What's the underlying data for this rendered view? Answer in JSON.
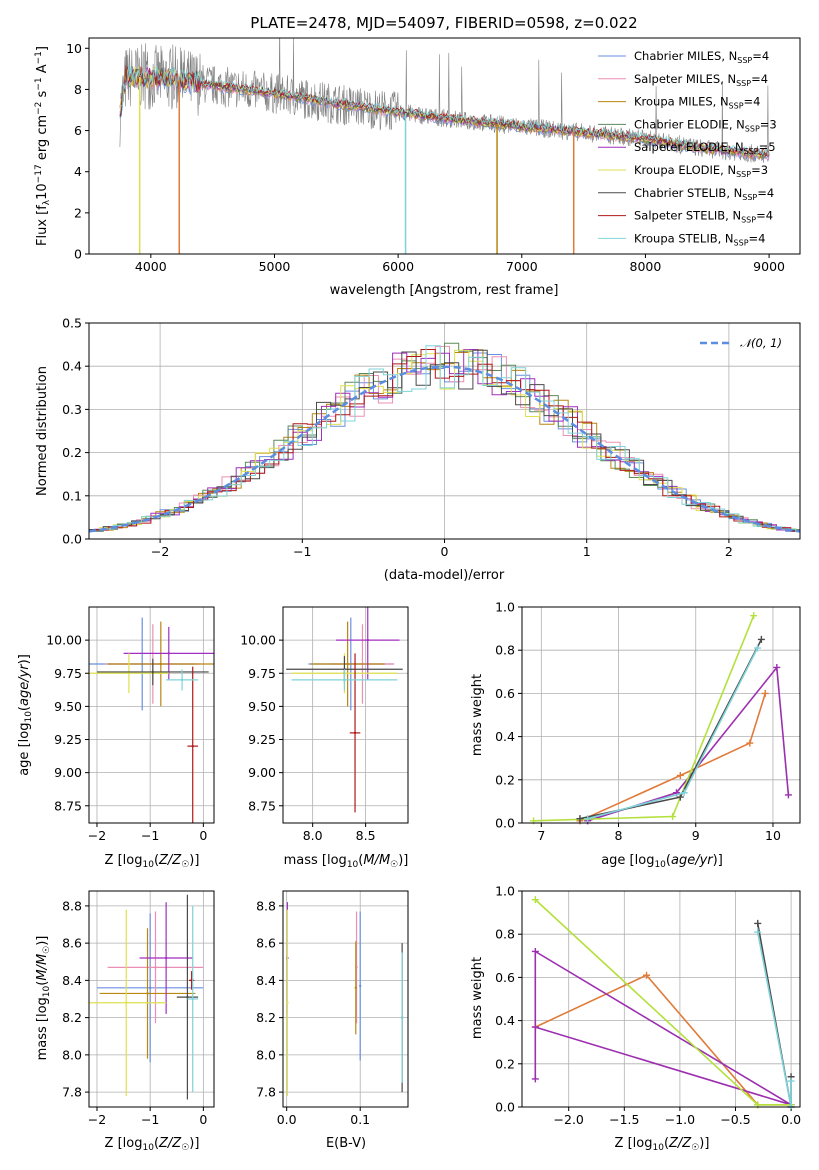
{
  "colors": {
    "Chabrier MILES": "#6a8fe0",
    "Salpeter MILES": "#ec8fb4",
    "Kroupa MILES": "#b9860f",
    "Chabrier ELODIE": "#5c8a5c",
    "Salpeter ELODIE": "#a12fc0",
    "Kroupa ELODIE": "#dfe04f",
    "Chabrier STELIB": "#4a4a4a",
    "Salpeter STELIB": "#b01818",
    "Kroupa STELIB": "#7fd3d8",
    "data": "#808080",
    "gauss": "#5b8ee0",
    "mw_orange": "#e07b39",
    "mw_purple": "#9c2fb0",
    "mw_yellow": "#b4e03c"
  },
  "chart_data": [
    {
      "id": "spectrum",
      "type": "line",
      "title": "PLATE=2478, MJD=54097, FIBERID=0598, z=0.022",
      "xlabel": "wavelength [Angstrom, rest frame]",
      "ylabel": "Flux [f",
      "xlim": [
        3500,
        9250
      ],
      "ylim": [
        0,
        10.5
      ],
      "xticks": [
        "4000",
        "5000",
        "6000",
        "7000",
        "8000",
        "9000"
      ],
      "yticks": [
        "0",
        "2",
        "4",
        "6",
        "8",
        "10"
      ],
      "grid": false,
      "legend_position": "top-right",
      "legend": [
        {
          "name": "Chabrier MILES",
          "nssp": "4"
        },
        {
          "name": "Salpeter MILES",
          "nssp": "4"
        },
        {
          "name": "Kroupa MILES",
          "nssp": "4"
        },
        {
          "name": "Chabrier ELODIE",
          "nssp": "3"
        },
        {
          "name": "Salpeter ELODIE",
          "nssp": "5"
        },
        {
          "name": "Kroupa ELODIE",
          "nssp": "3"
        },
        {
          "name": "Chabrier STELIB",
          "nssp": "4"
        },
        {
          "name": "Salpeter STELIB",
          "nssp": "4"
        },
        {
          "name": "Kroupa STELIB",
          "nssp": "4"
        }
      ],
      "continuum_x": [
        3750,
        3800,
        4000,
        4200,
        4500,
        5000,
        5500,
        6000,
        6500,
        7000,
        7500,
        8000,
        8500,
        9000
      ],
      "continuum_y": [
        6.8,
        8.6,
        8.6,
        8.5,
        8.2,
        7.8,
        7.3,
        6.9,
        6.5,
        6.2,
        5.9,
        5.6,
        5.1,
        4.8
      ],
      "model_dips_x": [
        3910,
        4230,
        6060,
        6800,
        7420
      ]
    },
    {
      "id": "residuals",
      "type": "line",
      "xlabel": "(data-model)/error",
      "ylabel": "Normed distribution",
      "xlim": [
        -2.5,
        2.5
      ],
      "ylim": [
        0,
        0.5
      ],
      "xticks": [
        "−2",
        "−1",
        "0",
        "1",
        "2"
      ],
      "yticks": [
        "0.0",
        "0.1",
        "0.2",
        "0.3",
        "0.4",
        "0.5"
      ],
      "grid": true,
      "legend_position": "top-right",
      "legend": [
        "𝒩(0, 1)"
      ]
    },
    {
      "id": "age_vs_Z",
      "type": "scatter",
      "xlabel": "Z [log",
      "ylabel": "age  [log",
      "xlim": [
        -2.15,
        0.2
      ],
      "ylim": [
        8.62,
        10.25
      ],
      "xticks": [
        "−2",
        "−1",
        "0"
      ],
      "yticks": [
        "8.75",
        "9.00",
        "9.25",
        "9.50",
        "9.75",
        "10.00"
      ],
      "grid": true,
      "points": [
        {
          "model": "Chabrier MILES",
          "x": -1.15,
          "y": 9.82,
          "xerr": 1.0,
          "yerr": 0.35
        },
        {
          "model": "Salpeter MILES",
          "x": -0.95,
          "y": 9.82,
          "xerr": 0.9,
          "yerr": 0.3
        },
        {
          "model": "Kroupa MILES",
          "x": -0.8,
          "y": 9.82,
          "xerr": 1.0,
          "yerr": 0.32
        },
        {
          "model": "Salpeter ELODIE",
          "x": -0.65,
          "y": 9.9,
          "xerr": 0.85,
          "yerr": 0.2
        },
        {
          "model": "Kroupa ELODIE",
          "x": -1.4,
          "y": 9.75,
          "xerr": 0.75,
          "yerr": 0.15
        },
        {
          "model": "Chabrier STELIB",
          "x": -0.95,
          "y": 9.76,
          "xerr": 1.05,
          "yerr": 0.1
        },
        {
          "model": "Salpeter STELIB",
          "x": -0.2,
          "y": 9.2,
          "xerr": 0.1,
          "yerr": 0.6
        },
        {
          "model": "Kroupa STELIB",
          "x": -0.4,
          "y": 9.7,
          "xerr": 0.3,
          "yerr": 0.08
        }
      ]
    },
    {
      "id": "age_vs_mass",
      "type": "scatter",
      "xlabel": "mass [log",
      "ylabel": "",
      "xlim": [
        7.72,
        8.9
      ],
      "ylim": [
        8.62,
        10.25
      ],
      "xticks": [
        "8.0",
        "8.5"
      ],
      "yticks": [
        "8.75",
        "9.00",
        "9.25",
        "9.50",
        "9.75",
        "10.00"
      ],
      "grid": true,
      "points": [
        {
          "model": "Chabrier MILES",
          "x": 8.36,
          "y": 9.82,
          "xerr": 0.4,
          "yerr": 0.35
        },
        {
          "model": "Salpeter MILES",
          "x": 8.47,
          "y": 9.82,
          "xerr": 0.3,
          "yerr": 0.3
        },
        {
          "model": "Kroupa MILES",
          "x": 8.33,
          "y": 9.82,
          "xerr": 0.35,
          "yerr": 0.32
        },
        {
          "model": "Salpeter ELODIE",
          "x": 8.52,
          "y": 10.0,
          "xerr": 0.3,
          "yerr": 0.3
        },
        {
          "model": "Kroupa ELODIE",
          "x": 8.3,
          "y": 9.75,
          "xerr": 0.5,
          "yerr": 0.15
        },
        {
          "model": "Chabrier STELIB",
          "x": 8.3,
          "y": 9.78,
          "xerr": 0.55,
          "yerr": 0.1
        },
        {
          "model": "Salpeter STELIB",
          "x": 8.4,
          "y": 9.3,
          "xerr": 0.05,
          "yerr": 0.6
        },
        {
          "model": "Kroupa STELIB",
          "x": 8.3,
          "y": 9.7,
          "xerr": 0.5,
          "yerr": 0.08
        }
      ]
    },
    {
      "id": "massweight_vs_age",
      "type": "line",
      "xlabel": "age  [log",
      "ylabel": "mass weight",
      "xlim": [
        6.75,
        10.35
      ],
      "ylim": [
        0,
        1.0
      ],
      "xticks": [
        "7",
        "8",
        "9",
        "10"
      ],
      "yticks": [
        "0.0",
        "0.2",
        "0.4",
        "0.6",
        "0.8",
        "1.0"
      ],
      "grid": true,
      "series": [
        {
          "color_key": "mw_orange",
          "x": [
            7.5,
            8.8,
            9.7,
            9.9
          ],
          "y": [
            0.01,
            0.22,
            0.37,
            0.6
          ]
        },
        {
          "color_key": "mw_purple",
          "x": [
            7.6,
            8.75,
            10.05,
            10.2
          ],
          "y": [
            0.01,
            0.14,
            0.72,
            0.13
          ]
        },
        {
          "color_key": "mw_yellow",
          "x": [
            6.9,
            8.7,
            9.75
          ],
          "y": [
            0.01,
            0.03,
            0.96
          ]
        },
        {
          "color_key": "Chabrier STELIB",
          "x": [
            7.5,
            8.8,
            9.85
          ],
          "y": [
            0.02,
            0.12,
            0.85
          ]
        },
        {
          "color_key": "Kroupa STELIB",
          "x": [
            7.6,
            8.85,
            9.8
          ],
          "y": [
            0.02,
            0.14,
            0.81
          ]
        }
      ]
    },
    {
      "id": "mass_vs_Z",
      "type": "scatter",
      "xlabel": "Z [log",
      "ylabel": "mass [log",
      "xlim": [
        -2.15,
        0.2
      ],
      "ylim": [
        7.72,
        8.88
      ],
      "xticks": [
        "−2",
        "−1",
        "0"
      ],
      "yticks": [
        "7.8",
        "8.0",
        "8.2",
        "8.4",
        "8.6",
        "8.8"
      ],
      "grid": true,
      "points": [
        {
          "model": "Chabrier MILES",
          "x": -1.0,
          "y": 8.36,
          "xerr": 1.0,
          "yerr": 0.4
        },
        {
          "model": "Salpeter MILES",
          "x": -0.9,
          "y": 8.47,
          "xerr": 0.9,
          "yerr": 0.3
        },
        {
          "model": "Kroupa MILES",
          "x": -1.05,
          "y": 8.33,
          "xerr": 0.9,
          "yerr": 0.35
        },
        {
          "model": "Salpeter ELODIE",
          "x": -0.7,
          "y": 8.52,
          "xerr": 0.5,
          "yerr": 0.3
        },
        {
          "model": "Kroupa ELODIE",
          "x": -1.45,
          "y": 8.28,
          "xerr": 0.75,
          "yerr": 0.5
        },
        {
          "model": "Chabrier STELIB",
          "x": -0.3,
          "y": 8.31,
          "xerr": 0.2,
          "yerr": 0.55
        },
        {
          "model": "Salpeter STELIB",
          "x": -0.22,
          "y": 8.4,
          "xerr": 0.05,
          "yerr": 0.05
        },
        {
          "model": "Kroupa STELIB",
          "x": -0.2,
          "y": 8.3,
          "xerr": 0.1,
          "yerr": 0.5
        }
      ]
    },
    {
      "id": "mass_vs_EBV",
      "type": "scatter",
      "xlabel": "E(B-V)",
      "ylabel": "",
      "xlim": [
        -0.005,
        0.165
      ],
      "ylim": [
        7.72,
        8.88
      ],
      "xticks": [
        "0.0",
        "0.1"
      ],
      "yticks": [
        "7.8",
        "8.0",
        "8.2",
        "8.4",
        "8.6",
        "8.8"
      ],
      "grid": true,
      "points": [
        {
          "model": "Chabrier MILES",
          "x": 0.1,
          "y": 8.37,
          "xerr": 0,
          "yerr": 0.4
        },
        {
          "model": "Salpeter MILES",
          "x": 0.095,
          "y": 8.47,
          "xerr": 0,
          "yerr": 0.3
        },
        {
          "model": "Kroupa MILES",
          "x": 0.094,
          "y": 8.36,
          "xerr": 0,
          "yerr": 0.25
        },
        {
          "model": "Salpeter ELODIE",
          "x": 0.001,
          "y": 8.52,
          "xerr": 0,
          "yerr": 0.3
        },
        {
          "model": "Kroupa ELODIE",
          "x": 0.001,
          "y": 8.28,
          "xerr": 0,
          "yerr": 0.5
        },
        {
          "model": "Chabrier STELIB",
          "x": 0.157,
          "y": 8.2,
          "xerr": 0,
          "yerr": 0.4
        },
        {
          "model": "Kroupa STELIB",
          "x": 0.157,
          "y": 8.2,
          "xerr": 0,
          "yerr": 0.35
        }
      ]
    },
    {
      "id": "massweight_vs_Z",
      "type": "line",
      "xlabel": "Z [log",
      "ylabel": "mass weight",
      "xlim": [
        -2.42,
        0.08
      ],
      "ylim": [
        0,
        1.0
      ],
      "xticks": [
        "−2.0",
        "−1.5",
        "−1.0",
        "−0.5",
        "0.0"
      ],
      "yticks": [
        "0.0",
        "0.2",
        "0.4",
        "0.6",
        "0.8",
        "1.0"
      ],
      "grid": true,
      "series": [
        {
          "color_key": "mw_orange",
          "x": [
            -2.3,
            -1.3,
            -0.3,
            0.0
          ],
          "y": [
            0.37,
            0.61,
            0.01,
            0.01
          ]
        },
        {
          "color_key": "mw_purple",
          "x": [
            -2.3,
            -2.3,
            0.0,
            -2.3
          ],
          "y": [
            0.13,
            0.72,
            0.01,
            0.37
          ]
        },
        {
          "color_key": "mw_yellow",
          "x": [
            -2.3,
            -0.3,
            0.0
          ],
          "y": [
            0.96,
            0.01,
            0.01
          ]
        },
        {
          "color_key": "Chabrier STELIB",
          "x": [
            -0.3,
            0.0,
            0.0
          ],
          "y": [
            0.85,
            0.0,
            0.14
          ]
        },
        {
          "color_key": "Kroupa STELIB",
          "x": [
            -0.3,
            0.0,
            0.0
          ],
          "y": [
            0.81,
            0.0,
            0.12
          ]
        }
      ]
    }
  ]
}
